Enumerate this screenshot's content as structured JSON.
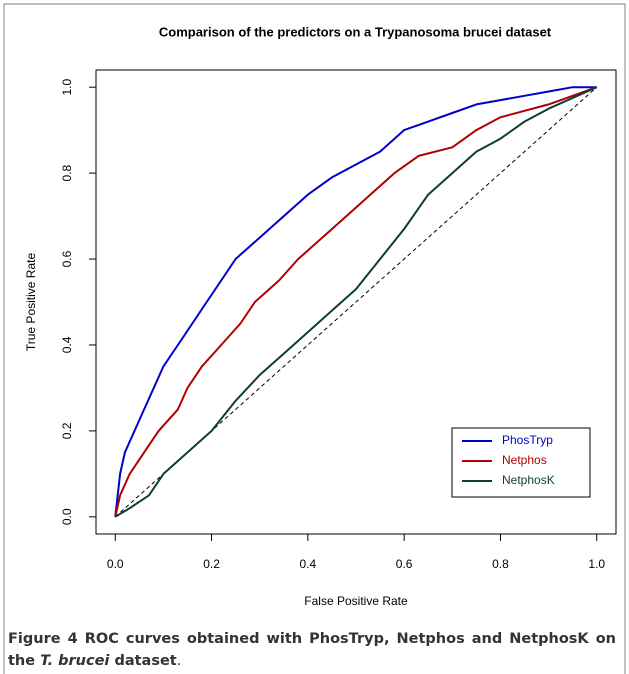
{
  "chart_data": {
    "type": "line",
    "title": "Comparison of the predictors on a Trypanosoma brucei dataset",
    "x_label": "False Positive Rate",
    "y_label": "True Positive Rate",
    "xlim": [
      -0.04,
      1.04
    ],
    "ylim": [
      -0.04,
      1.04
    ],
    "xticks": [
      {
        "value": 0,
        "label": "0.0"
      },
      0.2,
      0.4,
      0.6,
      0.8,
      {
        "value": 1,
        "label": "1.0"
      }
    ],
    "yticks": [
      {
        "value": 0,
        "label": "0.0"
      },
      0.2,
      0.4,
      0.6,
      0.8,
      {
        "value": 1,
        "label": "1.0"
      }
    ],
    "grid": false,
    "legend": "bottomright",
    "diagonal": {
      "x": [
        0,
        1
      ],
      "values": [
        0,
        1
      ],
      "color": "#000000",
      "style": "dashed"
    },
    "series": [
      {
        "name": "PhosTryp",
        "color": "#0000cc",
        "x": [
          0,
          0.005,
          0.01,
          0.02,
          0.04,
          0.06,
          0.08,
          0.1,
          0.13,
          0.16,
          0.19,
          0.22,
          0.25,
          0.3,
          0.35,
          0.4,
          0.45,
          0.5,
          0.55,
          0.6,
          0.65,
          0.7,
          0.75,
          0.8,
          0.85,
          0.9,
          0.95,
          1
        ],
        "values": [
          0,
          0.05,
          0.1,
          0.15,
          0.2,
          0.25,
          0.3,
          0.35,
          0.4,
          0.45,
          0.5,
          0.55,
          0.6,
          0.65,
          0.7,
          0.75,
          0.79,
          0.82,
          0.85,
          0.9,
          0.92,
          0.94,
          0.96,
          0.97,
          0.98,
          0.99,
          1,
          1
        ]
      },
      {
        "name": "Netphos",
        "color": "#b00000",
        "x": [
          0,
          0.01,
          0.03,
          0.06,
          0.09,
          0.13,
          0.15,
          0.18,
          0.22,
          0.26,
          0.29,
          0.34,
          0.38,
          0.43,
          0.48,
          0.53,
          0.58,
          0.63,
          0.7,
          0.75,
          0.8,
          0.9,
          1
        ],
        "values": [
          0,
          0.05,
          0.1,
          0.15,
          0.2,
          0.25,
          0.3,
          0.35,
          0.4,
          0.45,
          0.5,
          0.55,
          0.6,
          0.65,
          0.7,
          0.75,
          0.8,
          0.84,
          0.86,
          0.9,
          0.93,
          0.96,
          1
        ]
      },
      {
        "name": "NetphosK",
        "color": "#0b3d3a",
        "x": [
          0,
          0.03,
          0.07,
          0.1,
          0.15,
          0.2,
          0.25,
          0.3,
          0.35,
          0.4,
          0.45,
          0.5,
          0.55,
          0.6,
          0.65,
          0.7,
          0.75,
          0.8,
          0.85,
          0.9,
          1
        ],
        "values": [
          0,
          0.02,
          0.05,
          0.1,
          0.15,
          0.2,
          0.27,
          0.33,
          0.38,
          0.43,
          0.48,
          0.53,
          0.6,
          0.67,
          0.75,
          0.8,
          0.85,
          0.88,
          0.92,
          0.95,
          1
        ]
      }
    ]
  },
  "caption": {
    "label": "Figure 4",
    "text": "ROC curves obtained with PhosTryp, Netphos and NetphosK on the ",
    "italic": "T. brucei",
    "tail": " dataset",
    "end": "."
  }
}
